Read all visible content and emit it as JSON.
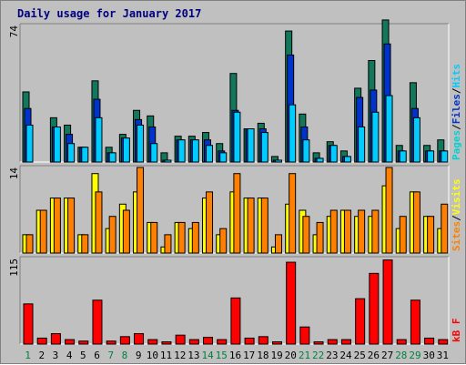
{
  "title": "Daily usage for January 2017",
  "colors": {
    "background": "#c0c0c0",
    "hits": "#00ccff",
    "files": "#0033cc",
    "pages": "#00d2d2",
    "visits": "#ffff00",
    "sites": "#ff8000",
    "kbf": "#ff0000",
    "hits_bar": "#13775c",
    "weekend_label": "#008040",
    "weekday_label": "#000000"
  },
  "chart_data": [
    {
      "type": "bar",
      "panel": "top",
      "ymax_label": "74",
      "ylim": [
        0,
        74
      ],
      "legend_parts": [
        "Pages",
        "/",
        "Files",
        "/",
        "Hits"
      ],
      "categories": [
        "1",
        "2",
        "3",
        "4",
        "5",
        "6",
        "7",
        "8",
        "9",
        "10",
        "11",
        "12",
        "13",
        "14",
        "15",
        "16",
        "17",
        "18",
        "19",
        "20",
        "21",
        "22",
        "23",
        "24",
        "25",
        "26",
        "27",
        "28",
        "29",
        "30",
        "31"
      ],
      "weekend_days": [
        "1",
        "7",
        "8",
        "14",
        "15",
        "21",
        "22",
        "28",
        "29"
      ],
      "series": [
        {
          "name": "Hits",
          "values": [
            38,
            0,
            24,
            20,
            8,
            44,
            8,
            15,
            28,
            25,
            5,
            14,
            14,
            16,
            10,
            48,
            18,
            21,
            3,
            71,
            26,
            5,
            11,
            6,
            40,
            55,
            77,
            9,
            43,
            9,
            12
          ]
        },
        {
          "name": "Files",
          "values": [
            29,
            0,
            19,
            15,
            8,
            34,
            5,
            13,
            23,
            19,
            1,
            12,
            12,
            12,
            6,
            28,
            18,
            18,
            1,
            58,
            19,
            2,
            9,
            3,
            35,
            39,
            64,
            6,
            29,
            6,
            6
          ]
        },
        {
          "name": "Pages",
          "values": [
            20,
            0,
            19,
            10,
            8,
            24,
            5,
            13,
            20,
            10,
            1,
            12,
            12,
            9,
            5,
            27,
            18,
            16,
            1,
            31,
            12,
            2,
            9,
            3,
            19,
            27,
            36,
            6,
            24,
            6,
            6
          ]
        }
      ]
    },
    {
      "type": "bar",
      "panel": "middle",
      "ymax_label": "14",
      "ylim": [
        0,
        14
      ],
      "legend_parts": [
        "Sites",
        "/",
        "Visits"
      ],
      "categories": [
        "1",
        "2",
        "3",
        "4",
        "5",
        "6",
        "7",
        "8",
        "9",
        "10",
        "11",
        "12",
        "13",
        "14",
        "15",
        "16",
        "17",
        "18",
        "19",
        "20",
        "21",
        "22",
        "23",
        "24",
        "25",
        "26",
        "27",
        "28",
        "29",
        "30",
        "31"
      ],
      "series": [
        {
          "name": "Visits",
          "values": [
            3,
            7,
            9,
            9,
            3,
            13,
            4,
            8,
            10,
            5,
            1,
            5,
            4,
            9,
            3,
            10,
            9,
            9,
            1,
            8,
            7,
            3,
            6,
            7,
            6,
            6,
            11,
            4,
            10,
            6,
            4
          ]
        },
        {
          "name": "Sites",
          "values": [
            3,
            7,
            9,
            9,
            3,
            10,
            6,
            7,
            14,
            5,
            3,
            5,
            5,
            10,
            4,
            13,
            9,
            9,
            3,
            13,
            6,
            5,
            7,
            7,
            7,
            7,
            14,
            6,
            10,
            6,
            8
          ]
        }
      ]
    },
    {
      "type": "bar",
      "panel": "bottom",
      "ymax_label": "115",
      "ylim": [
        0,
        115
      ],
      "legend_parts": [
        "kB F"
      ],
      "categories": [
        "1",
        "2",
        "3",
        "4",
        "5",
        "6",
        "7",
        "8",
        "9",
        "10",
        "11",
        "12",
        "13",
        "14",
        "15",
        "16",
        "17",
        "18",
        "19",
        "20",
        "21",
        "22",
        "23",
        "24",
        "25",
        "26",
        "27",
        "28",
        "29",
        "30",
        "31"
      ],
      "series": [
        {
          "name": "kB F",
          "values": [
            54,
            8,
            14,
            6,
            4,
            59,
            4,
            10,
            14,
            6,
            3,
            12,
            6,
            9,
            6,
            62,
            8,
            10,
            3,
            110,
            23,
            3,
            6,
            6,
            61,
            95,
            113,
            6,
            59,
            8,
            6
          ]
        }
      ]
    }
  ]
}
